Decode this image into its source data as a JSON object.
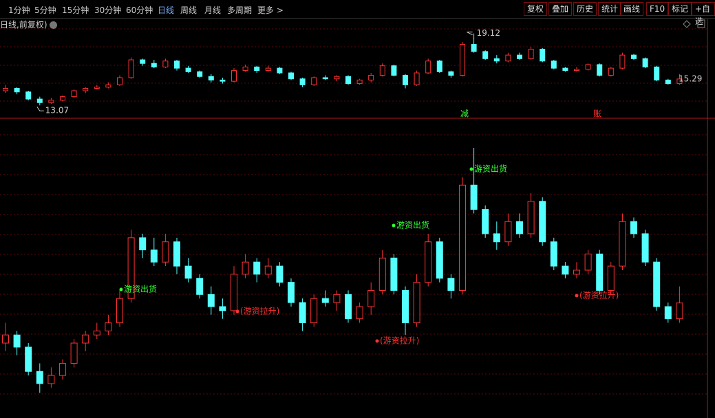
{
  "toolbar": {
    "periods": [
      "1分钟",
      "5分钟",
      "15分钟",
      "30分钟",
      "60分钟",
      "日线",
      "周线",
      "月线",
      "多周期",
      "更多 >"
    ],
    "buttons": [
      "复权",
      "叠加",
      "历史",
      "统计",
      "画线",
      "F10",
      "标记",
      "+自选"
    ]
  },
  "subtitle": "日线,前复权)",
  "chart_data": [
    {
      "type": "candlestick",
      "ylim": [
        12.1,
        20.2
      ],
      "up_color": "#ff3232",
      "down_color": "#54ffff",
      "markers": [
        "减",
        "账"
      ],
      "ohlc": [
        [
          14.3,
          14.8,
          14.1,
          14.5
        ],
        [
          14.5,
          14.6,
          14.0,
          14.2
        ],
        [
          14.2,
          14.3,
          13.5,
          13.6
        ],
        [
          13.6,
          13.8,
          13.07,
          13.3
        ],
        [
          13.3,
          13.7,
          13.2,
          13.5
        ],
        [
          13.5,
          13.9,
          13.4,
          13.8
        ],
        [
          13.8,
          14.4,
          13.7,
          14.3
        ],
        [
          14.3,
          14.6,
          14.1,
          14.5
        ],
        [
          14.5,
          14.8,
          14.4,
          14.6
        ],
        [
          14.6,
          15.0,
          14.5,
          14.8
        ],
        [
          14.8,
          15.6,
          14.7,
          15.4
        ],
        [
          15.4,
          17.1,
          15.3,
          16.9
        ],
        [
          16.9,
          17.0,
          16.4,
          16.6
        ],
        [
          16.6,
          16.9,
          16.2,
          16.3
        ],
        [
          16.3,
          17.0,
          16.2,
          16.8
        ],
        [
          16.8,
          16.9,
          16.0,
          16.2
        ],
        [
          16.2,
          16.4,
          15.8,
          15.9
        ],
        [
          15.9,
          16.0,
          15.4,
          15.5
        ],
        [
          15.5,
          15.7,
          15.0,
          15.2
        ],
        [
          15.2,
          15.4,
          14.9,
          15.1
        ],
        [
          15.1,
          16.2,
          15.0,
          16.0
        ],
        [
          16.0,
          16.5,
          15.9,
          16.3
        ],
        [
          16.3,
          16.4,
          15.8,
          16.0
        ],
        [
          16.0,
          16.4,
          15.9,
          16.2
        ],
        [
          16.2,
          16.3,
          15.7,
          15.8
        ],
        [
          15.8,
          15.9,
          15.2,
          15.3
        ],
        [
          15.3,
          15.4,
          14.6,
          14.8
        ],
        [
          14.8,
          15.5,
          14.7,
          15.4
        ],
        [
          15.4,
          15.6,
          15.2,
          15.3
        ],
        [
          15.3,
          15.6,
          15.1,
          15.5
        ],
        [
          15.5,
          15.6,
          14.8,
          14.9
        ],
        [
          14.9,
          15.3,
          14.8,
          15.2
        ],
        [
          15.2,
          15.8,
          15.0,
          15.6
        ],
        [
          15.6,
          16.6,
          15.5,
          16.4
        ],
        [
          16.4,
          16.5,
          15.5,
          15.6
        ],
        [
          15.6,
          15.7,
          14.5,
          14.8
        ],
        [
          14.8,
          16.0,
          14.7,
          15.8
        ],
        [
          15.8,
          17.0,
          15.7,
          16.8
        ],
        [
          16.8,
          16.9,
          15.8,
          15.9
        ],
        [
          15.9,
          16.0,
          15.4,
          15.6
        ],
        [
          15.6,
          18.4,
          15.5,
          18.2
        ],
        [
          18.2,
          19.12,
          17.5,
          17.6
        ],
        [
          17.6,
          17.7,
          16.9,
          17.0
        ],
        [
          17.0,
          17.3,
          16.6,
          16.8
        ],
        [
          16.8,
          17.5,
          16.7,
          17.3
        ],
        [
          17.3,
          17.5,
          16.9,
          17.0
        ],
        [
          17.0,
          18.0,
          16.9,
          17.8
        ],
        [
          17.8,
          17.9,
          16.7,
          16.8
        ],
        [
          16.8,
          16.9,
          16.1,
          16.2
        ],
        [
          16.2,
          16.3,
          15.9,
          16.0
        ],
        [
          16.0,
          16.3,
          15.9,
          16.1
        ],
        [
          16.1,
          16.6,
          16.0,
          16.5
        ],
        [
          16.5,
          16.6,
          15.5,
          15.6
        ],
        [
          15.6,
          16.3,
          15.5,
          16.2
        ],
        [
          16.2,
          17.5,
          16.1,
          17.3
        ],
        [
          17.3,
          17.4,
          16.9,
          17.0
        ],
        [
          17.0,
          17.1,
          16.2,
          16.3
        ],
        [
          16.3,
          16.4,
          15.1,
          15.2
        ],
        [
          15.2,
          15.3,
          14.8,
          14.9
        ],
        [
          14.9,
          15.7,
          14.8,
          15.29
        ]
      ]
    },
    {
      "type": "candlestick",
      "ylim": [
        12.45,
        19.8
      ],
      "signals": [
        "游资出货",
        "(游资拉升)",
        "(游资拉升)",
        "游资出货",
        "游资出货",
        "(游资拉升)"
      ],
      "signal_colors": [
        "#33ff33",
        "#ff3232",
        "#ff3232",
        "#33ff33",
        "#33ff33",
        "#ff3232"
      ]
    }
  ]
}
